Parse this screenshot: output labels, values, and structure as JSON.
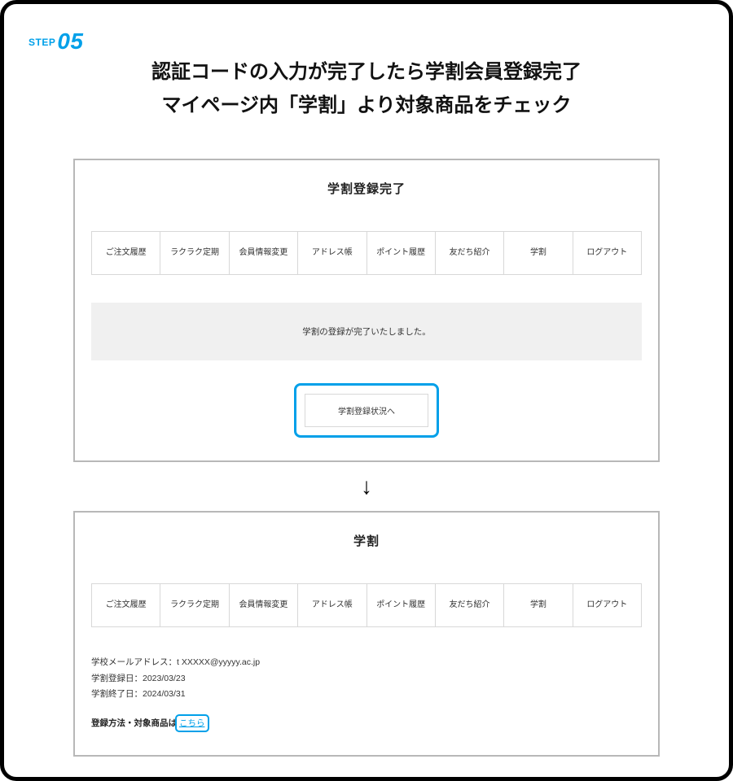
{
  "step": {
    "label_prefix": "STEP",
    "number": "05"
  },
  "heading_line1": "認証コードの入力が完了したら学割会員登録完了",
  "heading_line2": "マイページ内「学割」より対象商品をチェック",
  "tabs": {
    "t0": "ご注文履歴",
    "t1": "ラクラク定期",
    "t2": "会員情報変更",
    "t3": "アドレス帳",
    "t4": "ポイント履歴",
    "t5": "友だち紹介",
    "t6": "学割",
    "t7": "ログアウト"
  },
  "panel1": {
    "title": "学割登録完了",
    "notice": "学割の登録が完了いたしました。",
    "button": "学割登録状況へ"
  },
  "arrow": "↓",
  "panel2": {
    "title": "学割",
    "email_label": "学校メールアドレス：",
    "email_value": "t XXXXX@yyyyy.ac.jp",
    "reg_label": "学割登録日：",
    "reg_value": "2023/03/23",
    "end_label": "学割終了日：",
    "end_value": "2024/03/31",
    "footnote_prefix": "登録方法・対象商品は",
    "footnote_link": "こちら"
  },
  "colors": {
    "accent": "#00a0e9",
    "border_gray": "#b8b8b8",
    "cell_border": "#d8d8d8",
    "notice_bg": "#f0f0f0"
  }
}
